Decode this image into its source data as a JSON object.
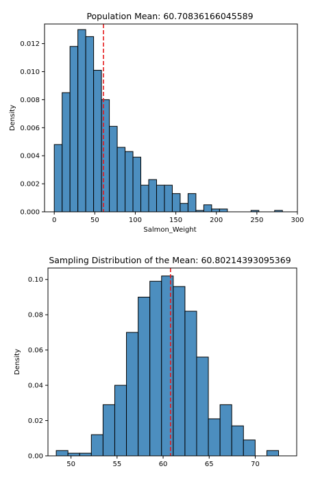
{
  "chart_data": [
    {
      "type": "bar",
      "title": "Population Mean: 60.70836166045589",
      "xlabel": "Salmon_Weight",
      "ylabel": "Density",
      "xlim": [
        -12,
        300
      ],
      "ylim": [
        0,
        0.0134
      ],
      "bin_width": 9.71,
      "bin_start": 0.0,
      "values": [
        0.0048,
        0.0085,
        0.0118,
        0.013,
        0.0125,
        0.0101,
        0.008,
        0.0061,
        0.0046,
        0.0043,
        0.0039,
        0.0019,
        0.0023,
        0.0019,
        0.0019,
        0.0013,
        0.0006,
        0.0013,
        0.0001,
        0.0005,
        0.0002,
        0.0002,
        0.0,
        0.0,
        0.0,
        0.0001,
        0.0,
        0.0,
        0.0001
      ],
      "mean_line": 60.70836166045589,
      "xticks": [
        0,
        50,
        100,
        150,
        200,
        250,
        300
      ],
      "xtick_labels": [
        "0",
        "50",
        "100",
        "150",
        "200",
        "250",
        "300"
      ],
      "yticks": [
        0.0,
        0.002,
        0.004,
        0.006,
        0.008,
        0.01,
        0.012
      ],
      "ytick_labels": [
        "0.000",
        "0.002",
        "0.004",
        "0.006",
        "0.008",
        "0.010",
        "0.012"
      ],
      "mean_line_color": "#e41a1c",
      "bar_color": "#4c8ebf",
      "grid": false
    },
    {
      "type": "bar",
      "title": "Sampling Distribution of the Mean: 60.80214393095369",
      "xlabel": "",
      "ylabel": "Density",
      "xlim": [
        47.5,
        74.5
      ],
      "ylim": [
        0,
        0.1065
      ],
      "bin_width": 1.27,
      "bin_start": 48.4,
      "values": [
        0.003,
        0.0015,
        0.0015,
        0.012,
        0.029,
        0.04,
        0.07,
        0.09,
        0.099,
        0.102,
        0.096,
        0.082,
        0.056,
        0.021,
        0.029,
        0.017,
        0.009,
        0.0,
        0.003
      ],
      "mean_line": 60.80214393095369,
      "xticks": [
        50,
        55,
        60,
        65,
        70
      ],
      "xtick_labels": [
        "50",
        "55",
        "60",
        "65",
        "70"
      ],
      "yticks": [
        0.0,
        0.02,
        0.04,
        0.06,
        0.08,
        0.1
      ],
      "ytick_labels": [
        "0.00",
        "0.02",
        "0.04",
        "0.06",
        "0.08",
        "0.10"
      ],
      "mean_line_color": "#e41a1c",
      "bar_color": "#4c8ebf",
      "grid": false
    }
  ]
}
